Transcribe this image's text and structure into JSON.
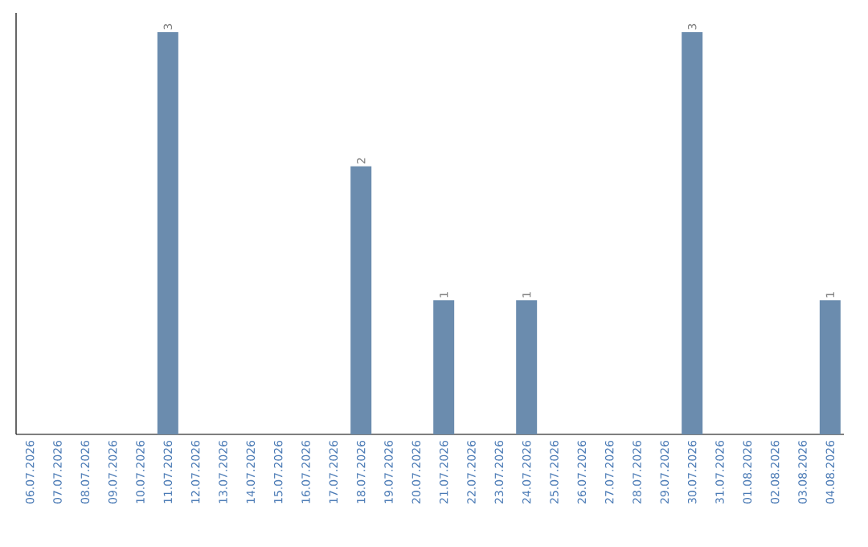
{
  "chart_data": {
    "type": "bar",
    "categories": [
      "06.07.2026",
      "07.07.2026",
      "08.07.2026",
      "09.07.2026",
      "10.07.2026",
      "11.07.2026",
      "12.07.2026",
      "13.07.2026",
      "14.07.2026",
      "15.07.2026",
      "16.07.2026",
      "17.07.2026",
      "18.07.2026",
      "19.07.2026",
      "20.07.2026",
      "21.07.2026",
      "22.07.2026",
      "23.07.2026",
      "24.07.2026",
      "25.07.2026",
      "26.07.2026",
      "27.07.2026",
      "28.07.2026",
      "29.07.2026",
      "30.07.2026",
      "31.07.2026",
      "01.08.2026",
      "02.08.2026",
      "03.08.2026",
      "04.08.2026"
    ],
    "values": [
      0,
      0,
      0,
      0,
      0,
      3,
      0,
      0,
      0,
      0,
      0,
      0,
      2,
      0,
      0,
      1,
      0,
      0,
      1,
      0,
      0,
      0,
      0,
      0,
      3,
      0,
      0,
      0,
      0,
      1
    ],
    "value_labels": [
      null,
      null,
      null,
      null,
      null,
      "3",
      null,
      null,
      null,
      null,
      null,
      null,
      "2",
      null,
      null,
      "1",
      null,
      null,
      "1",
      null,
      null,
      null,
      null,
      null,
      "3",
      null,
      null,
      null,
      null,
      "1"
    ],
    "color": "#6b8cae",
    "tick_labels": "x"
  }
}
